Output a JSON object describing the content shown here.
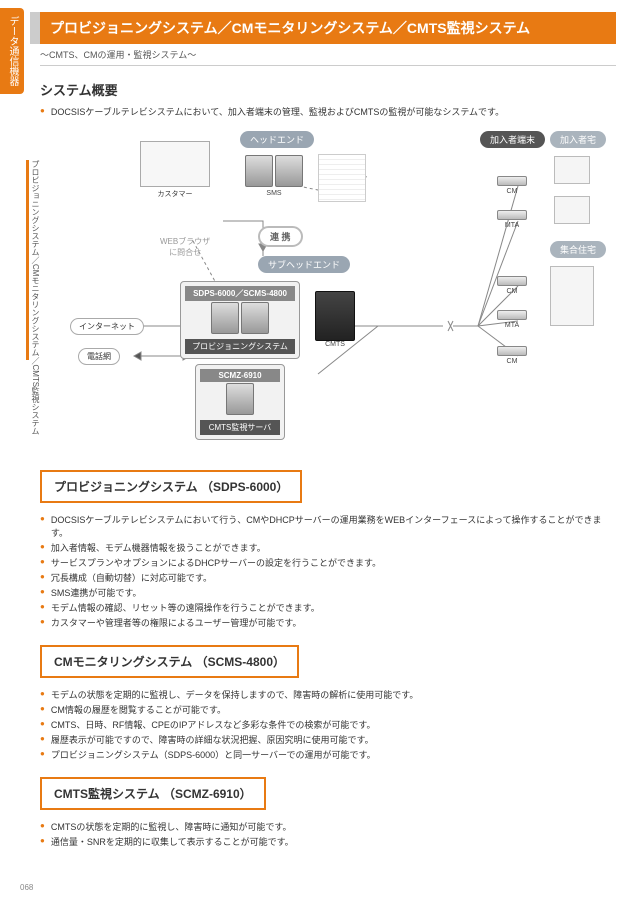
{
  "category_tab": "データ通信機器",
  "side_label": "プロビジョニングシステム／CMモニタリングシステム／CMTS監視システム",
  "title": "プロビジョニングシステム／CMモニタリングシステム／CMTS監視システム",
  "subtitle": "～CMTS、CMの運用・監視システム～",
  "overview_heading": "システム概要",
  "overview_bullet": "DOCSISケーブルテレビシステムにおいて、加入者端末の管理、監視およびCMTSの監視が可能なシステムです。",
  "diagram": {
    "headend": "ヘッドエンド",
    "subheadend": "サブヘッドエンド",
    "subscriber_terminal": "加入者端末",
    "subscriber_home": "加入者宅",
    "collective_housing": "集合住宅",
    "customer": "カスタマー",
    "sms": "SMS",
    "web_browser": "WEBブラウザ\nに問合せ",
    "cooperation": "連 携",
    "internet": "インターネット",
    "phone_net": "電話網",
    "sdps_scms_label": "SDPS-6000／SCMS-4800",
    "provisioning_label": "プロビジョニングシステム",
    "scmz_label": "SCMZ-6910",
    "cmts_server_label": "CMTS監視サーバ",
    "cmts": "CMTS",
    "cm": "CM",
    "mta": "MTA"
  },
  "sections": [
    {
      "heading": "プロビジョニングシステム （SDPS-6000）",
      "bullets": [
        "DOCSISケーブルテレビシステムにおいて行う、CMやDHCPサーバーの運用業務をWEBインターフェースによって操作することができます。",
        "加入者情報、モデム機器情報を扱うことができます。",
        "サービスプランやオプションによるDHCPサーバーの設定を行うことができます。",
        "冗長構成（自動切替）に対応可能です。",
        "SMS連携が可能です。",
        "モデム情報の確認、リセット等の遠隔操作を行うことができます。",
        "カスタマーや管理者等の権限によるユーザー管理が可能です。"
      ]
    },
    {
      "heading": "CMモニタリングシステム （SCMS-4800）",
      "bullets": [
        "モデムの状態を定期的に監視し、データを保持しますので、障害時の解析に使用可能です。",
        "CM情報の履歴を閲覧することが可能です。",
        "CMTS、日時、RF情報、CPEのIPアドレスなど多彩な条件での検索が可能です。",
        "履歴表示が可能ですので、障害時の詳細な状況把握、原因究明に使用可能です。",
        "プロビジョニングシステム（SDPS-6000）と同一サーバーでの運用が可能です。"
      ]
    },
    {
      "heading": "CMTS監視システム （SCMZ-6910）",
      "bullets": [
        "CMTSの状態を定期的に監視し、障害時に通知が可能です。",
        "通信量・SNRを定期的に収集して表示することが可能です。"
      ]
    }
  ],
  "page_number": "068",
  "colors": {
    "accent": "#e87a13",
    "gray": "#9aa6b2"
  }
}
